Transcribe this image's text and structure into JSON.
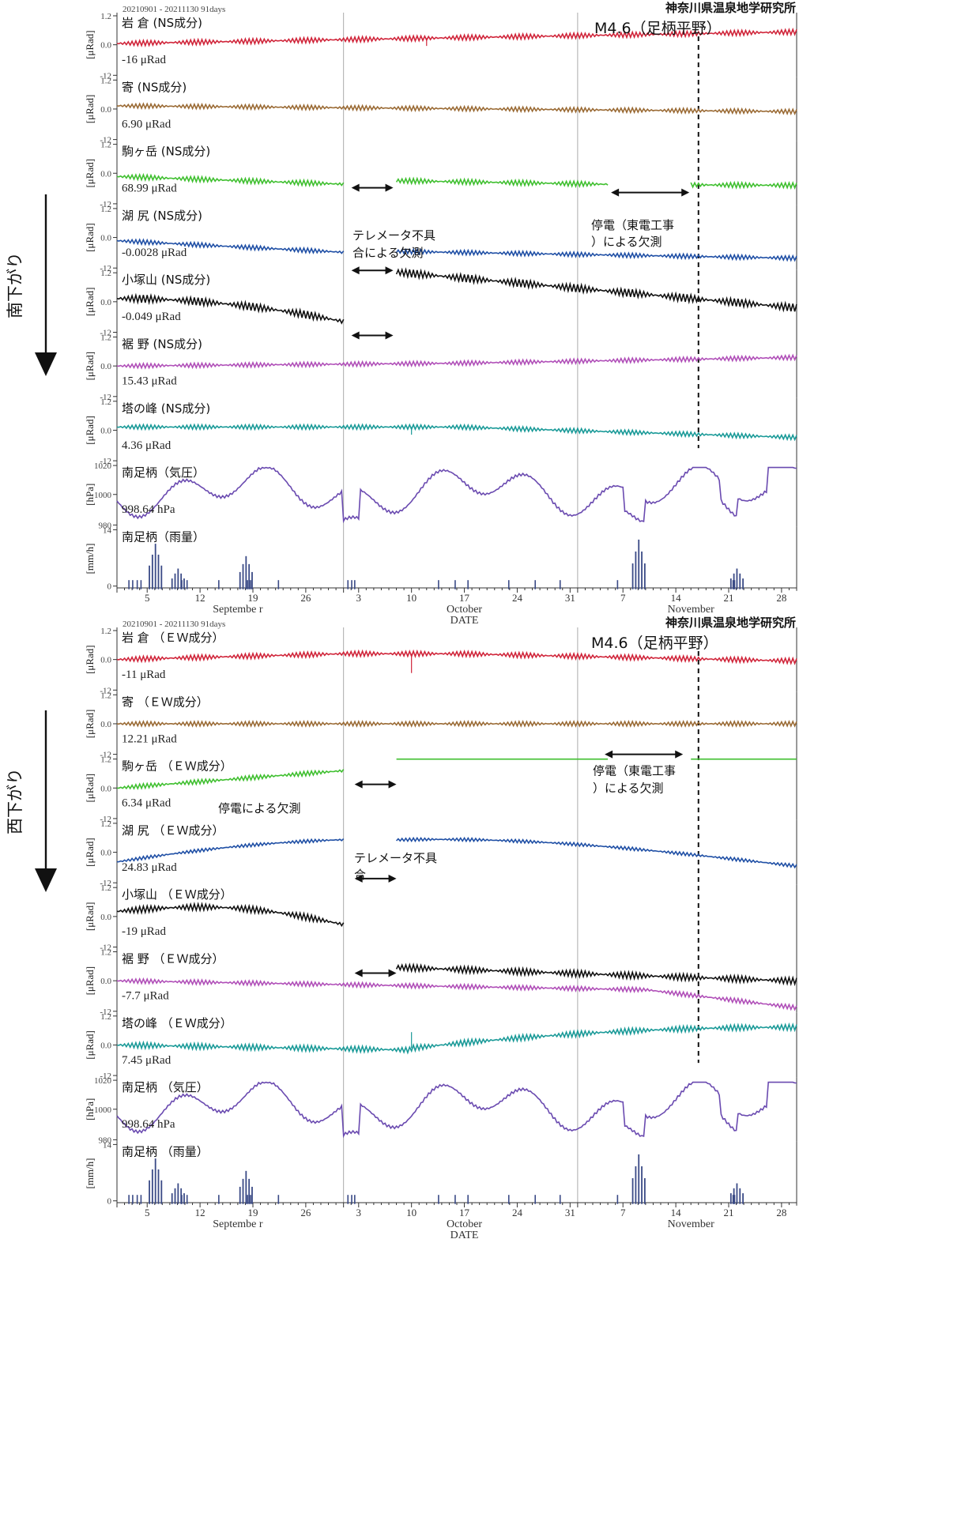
{
  "institute": "神奈川県温泉地学研究所",
  "period": "20210901 - 20211130 91days",
  "earthquake_label": "M4.6（足柄平野）",
  "x_axis": {
    "xlabel": "DATE",
    "tick_days": [
      "5",
      "12",
      "19",
      "26",
      "3",
      "10",
      "17",
      "24",
      "31",
      "7",
      "14",
      "21",
      "28"
    ],
    "months": [
      "Septembe r",
      "October",
      "November"
    ]
  },
  "colors": {
    "iwakura": "#d0253a",
    "yoriki": "#9a6a34",
    "komagatake": "#3fbf2f",
    "kojiri": "#1f4fa5",
    "kozukayama": "#111111",
    "susono": "#b04fb8",
    "tonomine": "#1a9a98",
    "pressure": "#6a4ab0",
    "rain": "#3a4a86"
  },
  "blocks": [
    {
      "id": "ns",
      "direction_label": "南下がり",
      "panels": [
        {
          "label": "岩 倉 (NS成分)",
          "value": "-16 μRad",
          "unit": "[μRad]",
          "yticks": [
            "1.2",
            "0.0",
            "-12"
          ]
        },
        {
          "label": "寄 (NS成分)",
          "value": "6.90 μRad",
          "unit": "[μRad]",
          "yticks": [
            "1.2",
            "0.0",
            "-12"
          ]
        },
        {
          "label": "駒ヶ岳 (NS成分)",
          "value": "68.99 μRad",
          "unit": "[μRad]",
          "yticks": [
            "1.2",
            "0.0",
            "-12"
          ]
        },
        {
          "label": "湖 尻 (NS成分)",
          "value": "-0.0028 μRad",
          "unit": "[μRad]",
          "yticks": [
            "1.2",
            "0.0",
            "-12"
          ]
        },
        {
          "label": "小塚山 (NS成分)",
          "value": "-0.049 μRad",
          "unit": "[μRad]",
          "yticks": [
            "1.2",
            "0.0",
            "-12"
          ]
        },
        {
          "label": "裾 野 (NS成分)",
          "value": "15.43 μRad",
          "unit": "[μRad]",
          "yticks": [
            "1.2",
            "0.0",
            "-12"
          ]
        },
        {
          "label": "塔の峰 (NS成分)",
          "value": "4.36 μRad",
          "unit": "[μRad]",
          "yticks": [
            "1.2",
            "0.0",
            "-12"
          ]
        },
        {
          "label": "南足柄（気圧）",
          "value": "998.64 hPa",
          "unit": "[hPa]",
          "yticks": [
            "1020",
            "1000",
            "980"
          ]
        },
        {
          "label": "南足柄（雨量）",
          "value": "",
          "unit": "[mm/h]",
          "yticks": [
            "14",
            "0"
          ]
        }
      ],
      "annotations": [
        {
          "text": "テレメータ不具"
        },
        {
          "text": "合による欠測"
        },
        {
          "text": "停電（東電工事"
        },
        {
          "text": "）による欠測"
        }
      ]
    },
    {
      "id": "ew",
      "direction_label": "西下がり",
      "panels": [
        {
          "label": "岩 倉 （ＥＷ成分）",
          "value": "-11 μRad",
          "unit": "[μRad]",
          "yticks": [
            "1.2",
            "0.0",
            "-12"
          ]
        },
        {
          "label": "寄 （ＥＷ成分）",
          "value": "12.21 μRad",
          "unit": "[μRad]",
          "yticks": [
            "1.2",
            "0.0",
            "-12"
          ]
        },
        {
          "label": "駒ヶ岳 （ＥＷ成分）",
          "value": "6.34 μRad",
          "unit": "[μRad]",
          "yticks": [
            "1.2",
            "0.0",
            "-12"
          ]
        },
        {
          "label": "湖 尻 （ＥＷ成分）",
          "value": "24.83 μRad",
          "unit": "[μRad]",
          "yticks": [
            "1.2",
            "0.0",
            "-12"
          ]
        },
        {
          "label": "小塚山 （ＥＷ成分）",
          "value": "-19 μRad",
          "unit": "[μRad]",
          "yticks": [
            "1.2",
            "0.0",
            "-12"
          ]
        },
        {
          "label": "裾 野 （ＥＷ成分）",
          "value": "-7.7 μRad",
          "unit": "[μRad]",
          "yticks": [
            "1.2",
            "0.0",
            "-12"
          ]
        },
        {
          "label": "塔の峰 （ＥＷ成分）",
          "value": "7.45 μRad",
          "unit": "[μRad]",
          "yticks": [
            "1.2",
            "0.0",
            "-12"
          ]
        },
        {
          "label": "南足柄 （気圧）",
          "value": "998.64 hPa",
          "unit": "[hPa]",
          "yticks": [
            "1020",
            "1000",
            "980"
          ]
        },
        {
          "label": "南足柄 （雨量）",
          "value": "",
          "unit": "[mm/h]",
          "yticks": [
            "14",
            "0"
          ]
        }
      ],
      "annotations": [
        {
          "text": "停電（東電工事"
        },
        {
          "text": "）による欠測"
        },
        {
          "text": "停電による欠測"
        },
        {
          "text": "テレメータ不具"
        },
        {
          "text": "合"
        }
      ]
    }
  ],
  "chart_data": {
    "type": "line",
    "x_range": [
      "2021-09-01",
      "2021-11-30"
    ],
    "earthquake_date": "2021-11-17",
    "telemetry_gap": [
      "2021-10-01",
      "2021-10-08"
    ],
    "outage_gap": [
      "2021-11-05",
      "2021-11-16"
    ],
    "tilt_ylim": [
      -12,
      1.2
    ],
    "pressure_ylim": [
      980,
      1020
    ],
    "rain_ylim": [
      0,
      14
    ],
    "rain_peaks": [
      {
        "date": "2021-09-06",
        "mmh": 11
      },
      {
        "date": "2021-09-09",
        "mmh": 5
      },
      {
        "date": "2021-09-18",
        "mmh": 8
      },
      {
        "date": "2021-11-09",
        "mmh": 12
      },
      {
        "date": "2021-11-22",
        "mmh": 5
      }
    ]
  }
}
